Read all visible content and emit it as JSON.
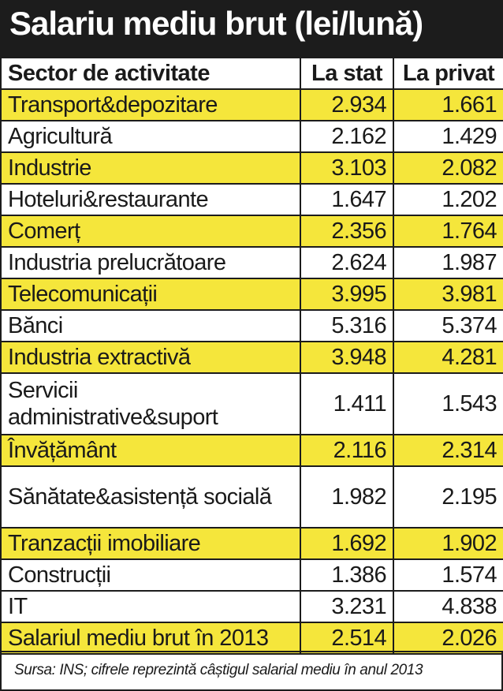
{
  "title": "Salariu mediu brut (lei/lună)",
  "headers": {
    "sector": "Sector de activitate",
    "stat": "La stat",
    "privat": "La privat"
  },
  "rows": [
    {
      "sector": "Transport&depozitare",
      "stat": "2.934",
      "privat": "1.661",
      "highlight": true
    },
    {
      "sector": "Agricultură",
      "stat": "2.162",
      "privat": "1.429",
      "highlight": false
    },
    {
      "sector": "Industrie",
      "stat": "3.103",
      "privat": "2.082",
      "highlight": true
    },
    {
      "sector": "Hoteluri&restaurante",
      "stat": "1.647",
      "privat": "1.202",
      "highlight": false
    },
    {
      "sector": "Comerț",
      "stat": "2.356",
      "privat": "1.764",
      "highlight": true
    },
    {
      "sector": "Industria prelucrătoare",
      "stat": "2.624",
      "privat": "1.987",
      "highlight": false
    },
    {
      "sector": "Telecomunicații",
      "stat": "3.995",
      "privat": "3.981",
      "highlight": true
    },
    {
      "sector": "Bănci",
      "stat": "5.316",
      "privat": "5.374",
      "highlight": false
    },
    {
      "sector": "Industria extractivă",
      "stat": "3.948",
      "privat": "4.281",
      "highlight": true
    },
    {
      "sector": "Servicii administrative&suport",
      "stat": "1.411",
      "privat": "1.543",
      "highlight": false
    },
    {
      "sector": "Învățământ",
      "stat": "2.116",
      "privat": "2.314",
      "highlight": true
    },
    {
      "sector": "Sănătate&asistență socială",
      "stat": "1.982",
      "privat": "2.195",
      "highlight": false
    },
    {
      "sector": "Tranzacții imobiliare",
      "stat": "1.692",
      "privat": "1.902",
      "highlight": true
    },
    {
      "sector": "Construcții",
      "stat": "1.386",
      "privat": "1.574",
      "highlight": false
    },
    {
      "sector": "IT",
      "stat": "3.231",
      "privat": "4.838",
      "highlight": false
    },
    {
      "sector": "Salariul mediu brut în 2013",
      "stat": "2.514",
      "privat": "2.026",
      "highlight": true
    }
  ],
  "source": "Sursa: INS; cifrele reprezintă câștigul salarial mediu în anul 2013",
  "colors": {
    "highlight": "#f5e63b",
    "title_background": "#1c1c1c",
    "title_text": "#ffffff"
  }
}
